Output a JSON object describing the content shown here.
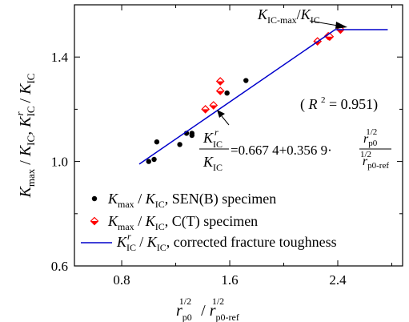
{
  "chart_data": {
    "type": "scatter",
    "x_axis": {
      "ticks": [
        0.8,
        1.6,
        2.4
      ],
      "tick_labels": [
        "0.8",
        "1.6",
        "2.4"
      ],
      "range": [
        0.45,
        2.88
      ]
    },
    "y_axis": {
      "ticks": [
        0.6,
        1.0,
        1.4
      ],
      "tick_labels": [
        "0.6",
        "1.0",
        "1.4"
      ],
      "range": [
        0.6,
        1.6
      ]
    },
    "series": [
      {
        "name": "K_max / K_IC, SEN(B) specimen",
        "marker": "dot",
        "color": "#000000",
        "points": [
          [
            1.0,
            1.0
          ],
          [
            1.04,
            1.008
          ],
          [
            1.06,
            1.075
          ],
          [
            1.23,
            1.065
          ],
          [
            1.28,
            1.108
          ],
          [
            1.32,
            1.108
          ],
          [
            1.32,
            1.1
          ],
          [
            1.58,
            1.262
          ],
          [
            1.72,
            1.31
          ]
        ]
      },
      {
        "name": "K_max / K_IC, C(T) specimen",
        "marker": "half-filled-diamond",
        "color": "#ff0000",
        "points": [
          [
            1.42,
            1.2
          ],
          [
            1.48,
            1.215
          ],
          [
            1.53,
            1.27
          ],
          [
            1.53,
            1.307
          ],
          [
            2.25,
            1.46
          ],
          [
            2.33,
            1.48
          ],
          [
            2.34,
            1.478
          ],
          [
            2.42,
            1.505
          ]
        ]
      },
      {
        "name": "K_IC^r / K_IC, corrected fracture toughness",
        "marker": "line",
        "color": "#0000cc",
        "points": [
          [
            0.93,
            0.99
          ],
          [
            2.38,
            1.505
          ],
          [
            2.77,
            1.505
          ]
        ]
      }
    ],
    "annotations": {
      "r_squared": {
        "open": "(",
        "symbol": "R",
        "sup": "2",
        "rest": " = 0.951)"
      },
      "plateau": {
        "main": "K",
        "sub": "IC-max",
        "slash": "/",
        "main2": "K",
        "sub2": "IC"
      },
      "equation": {
        "lhs_num": "K",
        "lhs_num_sub": "IC",
        "lhs_num_sup": "r",
        "lhs_den": "K",
        "lhs_den_sub": "IC",
        "rhs": "=0.667 4+0.356 9·",
        "rhs_num": "r",
        "rhs_num_sub": "p0",
        "rhs_num_sup": "1/2",
        "rhs_den": "r",
        "rhs_den_sub": "p0-ref",
        "rhs_den_sup": "1/2"
      }
    },
    "legend": {
      "position": "bottom-left",
      "entries": [
        {
          "k": "K",
          "k_sub": "max",
          "slash": "/",
          "k2": "K",
          "k2_sub": "IC",
          "rest": ", SEN(B) specimen"
        },
        {
          "k": "K",
          "k_sub": "max",
          "slash": "/",
          "k2": "K",
          "k2_sub": "IC",
          "rest": ", C(T) specimen"
        },
        {
          "k": "K",
          "k_sub": "IC",
          "k_sup": "r",
          "slash": "/",
          "k2": "K",
          "k2_sub": "IC",
          "rest": ", corrected fracture toughness"
        }
      ]
    },
    "xlabel": {
      "main": "r",
      "sub": "p0",
      "sup": "1/2",
      "slash": "/",
      "main2": "r",
      "sub2": "p0-ref",
      "sup2": "1/2"
    },
    "ylabel": {
      "main": "K",
      "sub": "max",
      "slash": "/",
      "main2": "K",
      "sub2": "IC",
      "comma": ",",
      "main3": "K",
      "sub3": "IC",
      "sup3": "r",
      "slash2": "/",
      "main4": "K",
      "sub4": "IC"
    }
  }
}
